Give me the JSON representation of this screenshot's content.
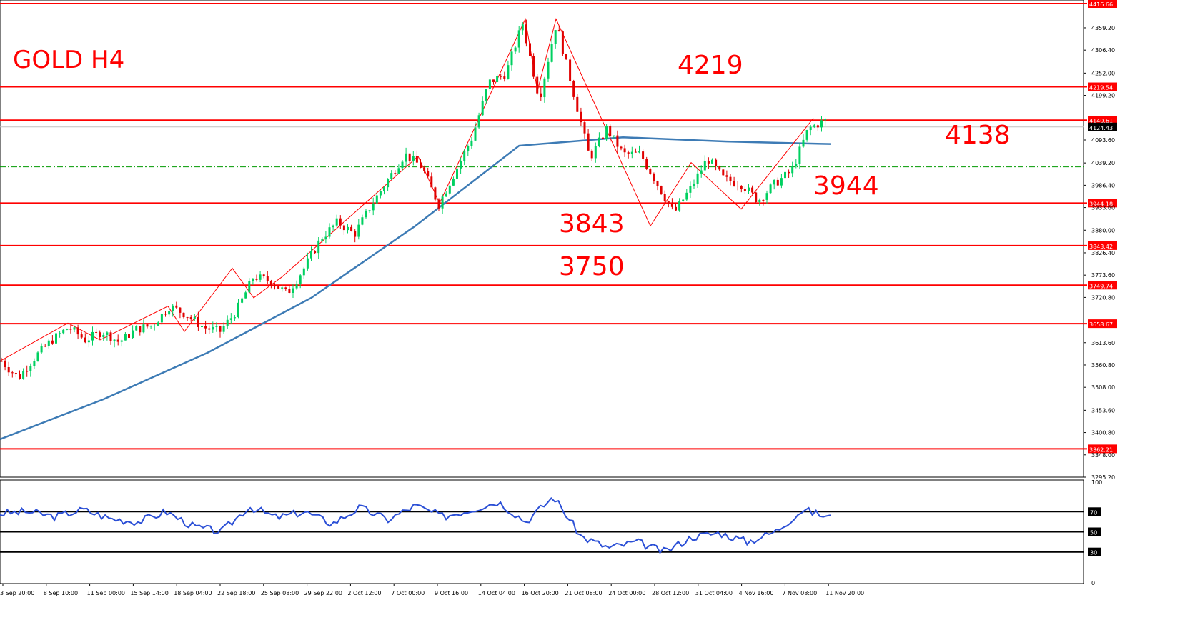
{
  "chart_title": "GOLD H4",
  "annotations": [
    "4219",
    "4138",
    "3944",
    "3843",
    "3750"
  ],
  "current_price": "4124.43",
  "level_labels": [
    "4416.66",
    "4219.54",
    "4140.61",
    "3944.18",
    "3843.42",
    "3749.74",
    "3658.67",
    "3362.21"
  ],
  "colors": {
    "level_line": "#ff0000",
    "bull_candle": "#00d060",
    "bear_candle": "#e00000",
    "moving_average": "#3d7bb5",
    "rsi_line": "#2b4fd6",
    "zigzag": "#ff0000",
    "dash_line": "#009900"
  },
  "chart_data": [
    {
      "type": "candlestick",
      "title": "GOLD H4",
      "ylim": [
        3295.2,
        4416.66
      ],
      "y_ticks": [
        "4359.20",
        "4306.40",
        "4252.00",
        "4199.20",
        "4093.60",
        "4039.20",
        "3986.40",
        "3933.60",
        "3880.00",
        "3826.40",
        "3773.60",
        "3720.80",
        "3613.60",
        "3560.80",
        "3508.00",
        "3453.60",
        "3400.80",
        "3348.00",
        "3295.20"
      ],
      "x_ticks": [
        "3 Sep 20:00",
        "8 Sep 10:00",
        "11 Sep 00:00",
        "15 Sep 14:00",
        "18 Sep 04:00",
        "22 Sep 18:00",
        "25 Sep 08:00",
        "29 Sep 22:00",
        "2 Oct 12:00",
        "7 Oct 00:00",
        "9 Oct 16:00",
        "14 Oct 04:00",
        "16 Oct 20:00",
        "21 Oct 08:00",
        "24 Oct 00:00",
        "28 Oct 12:00",
        "31 Oct 04:00",
        "4 Nov 16:00",
        "7 Nov 08:00",
        "11 Nov 20:00"
      ],
      "horizontal_levels": [
        4416.66,
        4219.54,
        4140.61,
        3944.18,
        3843.42,
        3749.74,
        3658.67,
        3362.21
      ],
      "dashed_level": 4030,
      "current_price": 4124.43,
      "price_path": [
        3570,
        3530,
        3580,
        3620,
        3650,
        3620,
        3640,
        3615,
        3645,
        3655,
        3700,
        3680,
        3650,
        3640,
        3690,
        3770,
        3760,
        3730,
        3790,
        3860,
        3900,
        3870,
        3940,
        4000,
        4060,
        4030,
        3940,
        4020,
        4100,
        4230,
        4250,
        4370,
        4190,
        4370,
        4210,
        4050,
        4120,
        4060,
        4060,
        3990,
        3920,
        3980,
        4050,
        4000,
        3990,
        3950,
        3990,
        4020,
        4120,
        4140
      ],
      "zigzag_points": [
        3570,
        3660,
        3620,
        3700,
        3640,
        3790,
        3720,
        3770,
        4055,
        3944,
        4380,
        4210,
        4380,
        3890,
        4040,
        3930,
        4145
      ],
      "moving_average": [
        3385,
        3480,
        3590,
        3720,
        3890,
        4080,
        4100,
        4090,
        4084
      ],
      "rsi": {
        "ylim": [
          0,
          100
        ],
        "levels": [
          70,
          50,
          30
        ],
        "axis_ticks": [
          "100",
          "70",
          "50",
          "30",
          "0"
        ],
        "values": [
          68,
          70,
          65,
          72,
          63,
          60,
          70,
          55,
          50,
          75,
          64,
          70,
          58,
          74,
          62,
          76,
          65,
          72,
          80,
          60,
          85,
          45,
          34,
          40,
          30,
          45,
          49,
          40,
          50,
          72,
          64
        ]
      }
    }
  ]
}
